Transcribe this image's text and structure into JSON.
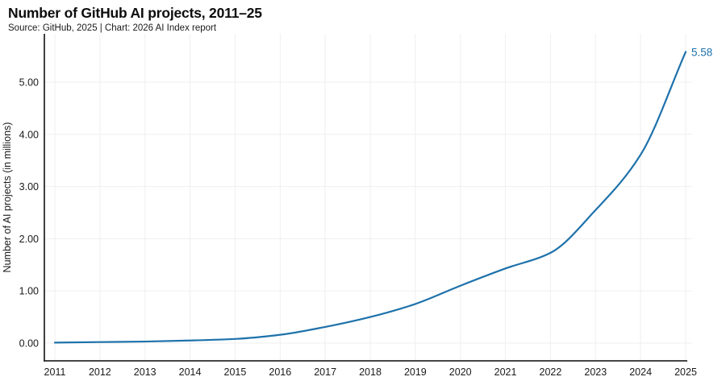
{
  "header": {
    "title": "Number of GitHub AI projects, 2011–25",
    "subtitle": "Source: GitHub, 2025 | Chart: 2026 AI Index report"
  },
  "chart_data": {
    "type": "line",
    "title": "Number of GitHub AI projects, 2011–25",
    "categories": [
      "2011",
      "2012",
      "2013",
      "2014",
      "2015",
      "2016",
      "2017",
      "2018",
      "2019",
      "2020",
      "2021",
      "2022",
      "2023",
      "2024",
      "2025"
    ],
    "values": [
      0.01,
      0.02,
      0.03,
      0.05,
      0.08,
      0.16,
      0.31,
      0.5,
      0.75,
      1.1,
      1.43,
      1.73,
      2.55,
      3.61,
      5.58
    ],
    "series_name": "Number of AI projects",
    "xlabel": "",
    "ylabel": "Number of AI projects (in millions)",
    "y_ticks": [
      "0.00",
      "1.00",
      "2.00",
      "3.00",
      "4.00",
      "5.00"
    ],
    "y_tick_values": [
      0,
      1,
      2,
      3,
      4,
      5
    ],
    "ylim": [
      -0.34,
      5.93
    ],
    "end_label": "5.58",
    "grid": true,
    "legend": "none",
    "line_color": "#1e72ab",
    "grid_color": "#efefef",
    "axis_color": "#2b2b2b",
    "tick_label_color": "#1a1a1a"
  }
}
